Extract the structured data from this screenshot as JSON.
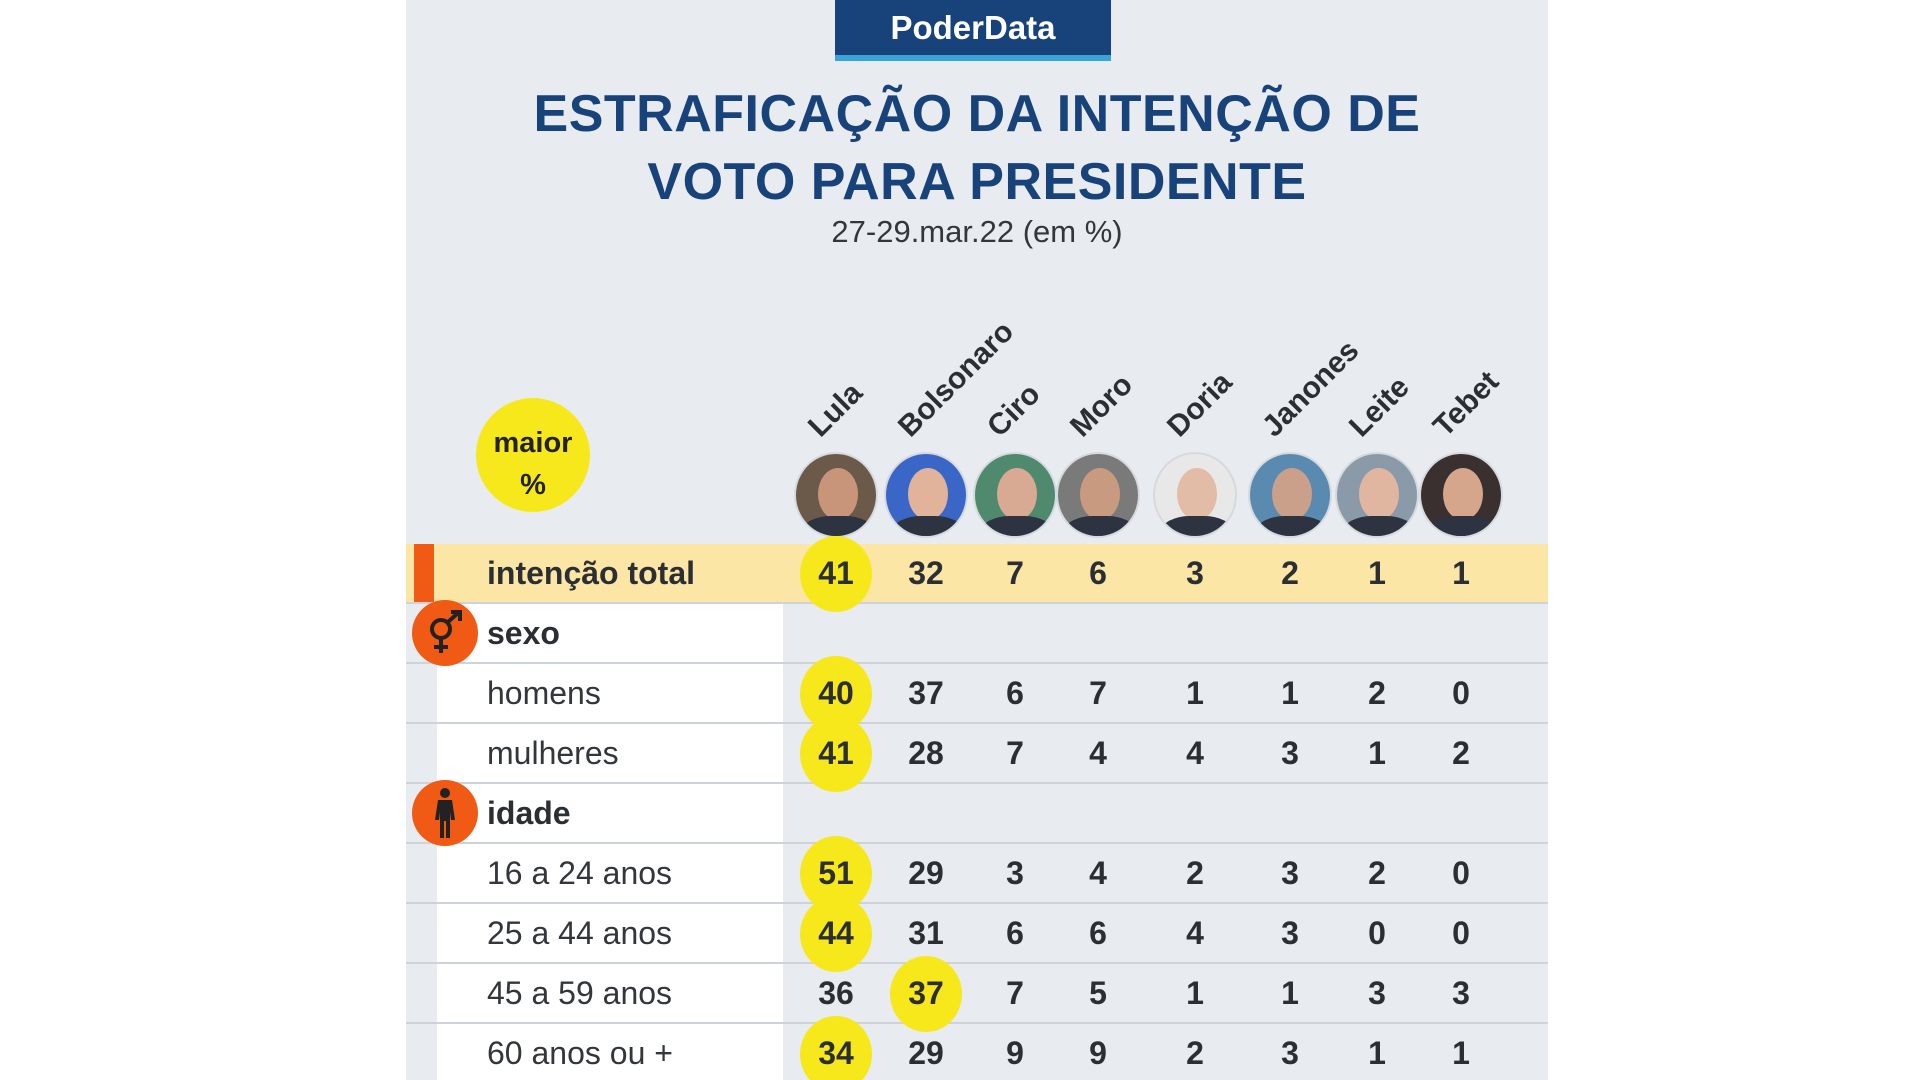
{
  "header": {
    "brand": "PoderData",
    "title_line1": "ESTRAFICAÇÃO DA INTENÇÃO DE",
    "title_line2": "VOTO PARA PRESIDENTE",
    "subtitle": "27-29.mar.22 (em %)"
  },
  "legend": {
    "line1": "maior",
    "line2": "%"
  },
  "colors": {
    "brand": "#17427a",
    "highlight": "#f7e81c",
    "accent": "#f05a14",
    "total_row": "#fbe6a6"
  },
  "chart_data": {
    "type": "table",
    "title": "ESTRAFICAÇÃO DA INTENÇÃO DE VOTO PARA PRESIDENTE",
    "subtitle": "27-29.mar.22 (em %)",
    "candidates": [
      "Lula",
      "Bolsonaro",
      "Ciro",
      "Moro",
      "Doria",
      "Janones",
      "Leite",
      "Tebet"
    ],
    "rows": [
      {
        "label": "intenção total",
        "type": "total",
        "values": [
          41,
          32,
          7,
          6,
          3,
          2,
          1,
          1
        ],
        "highlight": 0
      },
      {
        "label": "sexo",
        "type": "group",
        "icon": "gender-icon"
      },
      {
        "label": "homens",
        "values": [
          40,
          37,
          6,
          7,
          1,
          1,
          2,
          0
        ],
        "highlight": 0
      },
      {
        "label": "mulheres",
        "values": [
          41,
          28,
          7,
          4,
          4,
          3,
          1,
          2
        ],
        "highlight": 0
      },
      {
        "label": "idade",
        "type": "group",
        "icon": "person-icon"
      },
      {
        "label": "16 a 24 anos",
        "values": [
          51,
          29,
          3,
          4,
          2,
          3,
          2,
          0
        ],
        "highlight": 0
      },
      {
        "label": "25 a 44 anos",
        "values": [
          44,
          31,
          6,
          6,
          4,
          3,
          0,
          0
        ],
        "highlight": 0
      },
      {
        "label": "45 a 59 anos",
        "values": [
          36,
          37,
          7,
          5,
          1,
          1,
          3,
          3
        ],
        "highlight": 1
      },
      {
        "label": "60 anos ou +",
        "values": [
          34,
          29,
          9,
          9,
          2,
          3,
          1,
          1
        ],
        "highlight": 0
      }
    ]
  }
}
